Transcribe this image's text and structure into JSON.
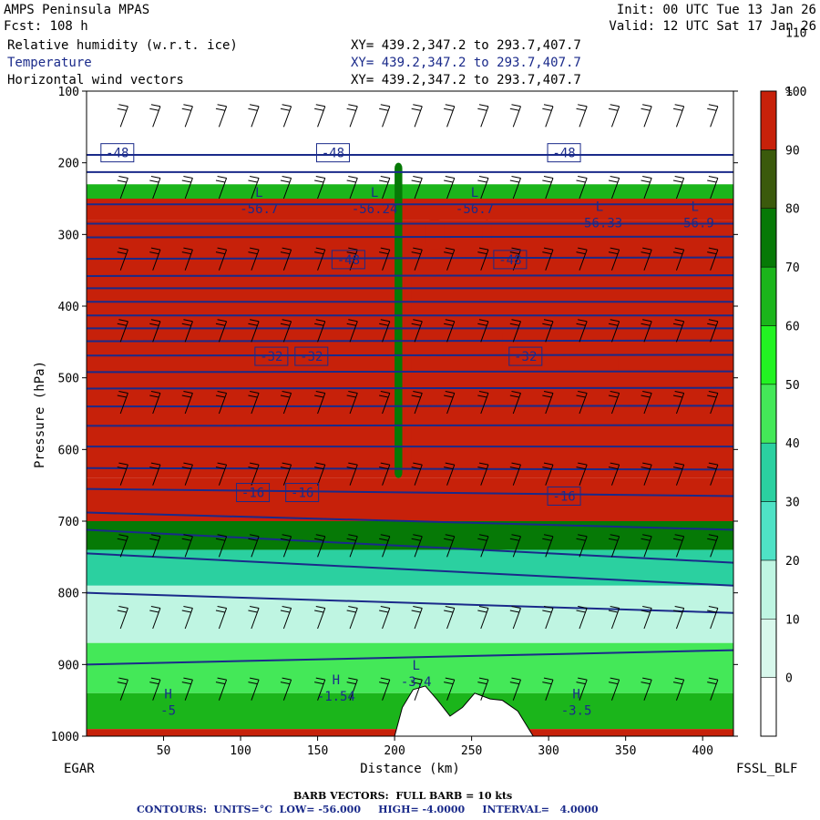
{
  "header": {
    "title": "AMPS Peninsula MPAS",
    "forecast": "Fcst: 108 h",
    "init": "Init: 00 UTC Tue 13 Jan 26",
    "valid": "Valid: 12 UTC Sat 17 Jan 26",
    "fields": [
      {
        "name": "Relative humidity (w.r.t. ice)",
        "coords": "XY= 439.2,347.2 to 293.7,407.7"
      },
      {
        "name": "Temperature",
        "coords": "XY= 439.2,347.2 to 293.7,407.7"
      },
      {
        "name": "Horizontal wind vectors",
        "coords": "XY= 439.2,347.2 to 293.7,407.7"
      }
    ]
  },
  "footer": {
    "left_station": "EGAR",
    "right_station": "FSSL_BLF",
    "barb_note": "BARB VECTORS:  FULL BARB = 10 kts",
    "contour_note": "CONTOURS:  UNITS=°C  LOW= -56.000     HIGH= -4.0000     INTERVAL=   4.0000"
  },
  "colors": {
    "navy": "#1a2a8a",
    "rh_scale": [
      "#ffffff",
      "#d8f8ec",
      "#bff5e2",
      "#4fe2c6",
      "#2bd0a0",
      "#44e858",
      "#22f322",
      "#1bb51b",
      "#067906",
      "#3b5a0c",
      "#c7210a"
    ]
  },
  "chart_data": {
    "type": "cross-section",
    "xlabel": "Distance (km)",
    "ylabel": "Pressure (hPa)",
    "xlim": [
      0,
      420
    ],
    "ylim": [
      1000,
      100
    ],
    "x_ticks": [
      50,
      100,
      150,
      200,
      250,
      300,
      350,
      400
    ],
    "y_ticks": [
      100,
      200,
      300,
      400,
      500,
      600,
      700,
      800,
      900,
      1000
    ],
    "colorbar": {
      "unit": "%",
      "ticks": [
        0,
        10,
        20,
        30,
        40,
        50,
        60,
        70,
        80,
        90,
        100,
        110
      ],
      "bins": [
        -10,
        0,
        10,
        20,
        30,
        40,
        50,
        60,
        70,
        80,
        90,
        100,
        110,
        120
      ]
    },
    "rh_layers": [
      {
        "p_top": 230,
        "p_bottom": 250,
        "rh": 65
      },
      {
        "p_top": 250,
        "p_bottom": 280,
        "rh": 95
      },
      {
        "p_top": 280,
        "p_bottom": 640,
        "rh": 105
      },
      {
        "p_top": 640,
        "p_bottom": 700,
        "rh": 95
      },
      {
        "p_top": 700,
        "p_bottom": 740,
        "rh": 75
      },
      {
        "p_top": 740,
        "p_bottom": 790,
        "rh": 35
      },
      {
        "p_top": 790,
        "p_bottom": 870,
        "rh": 15
      },
      {
        "p_top": 870,
        "p_bottom": 940,
        "rh": 45
      },
      {
        "p_top": 940,
        "p_bottom": 990,
        "rh": 65
      },
      {
        "p_top": 990,
        "p_bottom": 1000,
        "rh": 105
      }
    ],
    "rh_patches": [
      {
        "x": [
          220,
          232
        ],
        "p": [
          280,
          320
        ],
        "rh": 112
      },
      {
        "x": [
          257,
          263
        ],
        "p": [
          280,
          320
        ],
        "rh": 112
      },
      {
        "x": [
          207,
          211
        ],
        "p": [
          350,
          630
        ],
        "rh": 112
      },
      {
        "x": [
          270,
          280
        ],
        "p": [
          430,
          470
        ],
        "rh": 112
      },
      {
        "x": [
          345,
          420
        ],
        "p": [
          430,
          500
        ],
        "rh": 112
      },
      {
        "x": [
          385,
          400
        ],
        "p": [
          285,
          300
        ],
        "rh": 112
      },
      {
        "x": [
          200,
          205
        ],
        "p": [
          200,
          640
        ],
        "rh": 75
      }
    ],
    "temperature_isotherms": [
      {
        "p_left": 189,
        "p_right": 189
      },
      {
        "p_left": 213,
        "p_right": 213
      },
      {
        "p_left": 258,
        "p_right": 258
      },
      {
        "p_left": 285,
        "p_right": 285
      },
      {
        "p_left": 304,
        "p_right": 303
      },
      {
        "p_left": 334,
        "p_right": 332
      },
      {
        "p_left": 358,
        "p_right": 357
      },
      {
        "p_left": 375,
        "p_right": 375
      },
      {
        "p_left": 394,
        "p_right": 394
      },
      {
        "p_left": 413,
        "p_right": 413
      },
      {
        "p_left": 431,
        "p_right": 431
      },
      {
        "p_left": 449,
        "p_right": 448
      },
      {
        "p_left": 469,
        "p_right": 468
      },
      {
        "p_left": 492,
        "p_right": 491
      },
      {
        "p_left": 515,
        "p_right": 514
      },
      {
        "p_left": 540,
        "p_right": 539
      },
      {
        "p_left": 567,
        "p_right": 566
      },
      {
        "p_left": 596,
        "p_right": 596
      },
      {
        "p_left": 626,
        "p_right": 628
      },
      {
        "p_left": 655,
        "p_right": 665
      },
      {
        "p_left": 688,
        "p_right": 712
      },
      {
        "p_left": 712,
        "p_right": 758
      },
      {
        "p_left": 745,
        "p_right": 790
      },
      {
        "p_left": 800,
        "p_right": 828
      },
      {
        "p_left": 900,
        "p_right": 880
      }
    ],
    "contour_labels": [
      {
        "text": "-48",
        "x": 20,
        "p": 186
      },
      {
        "text": "-48",
        "x": 160,
        "p": 186
      },
      {
        "text": "-48",
        "x": 310,
        "p": 186
      },
      {
        "text": "-48",
        "x": 170,
        "p": 335
      },
      {
        "text": "-48",
        "x": 275,
        "p": 335
      },
      {
        "text": "-32",
        "x": 120,
        "p": 470
      },
      {
        "text": "-32",
        "x": 146,
        "p": 470
      },
      {
        "text": "-32",
        "x": 285,
        "p": 470
      },
      {
        "text": "-16",
        "x": 108,
        "p": 660
      },
      {
        "text": "-16",
        "x": 140,
        "p": 660
      },
      {
        "text": "-16",
        "x": 310,
        "p": 665
      }
    ],
    "extrema": [
      {
        "type": "L",
        "value": "-56.7",
        "x": 112,
        "p": 260
      },
      {
        "type": "L",
        "value": "-56.24",
        "x": 187,
        "p": 260
      },
      {
        "type": "L",
        "value": "-56.7",
        "x": 252,
        "p": 260
      },
      {
        "type": "L",
        "value": "-56.33",
        "x": 333,
        "p": 280
      },
      {
        "type": "L",
        "value": "-56.9",
        "x": 395,
        "p": 280
      },
      {
        "type": "H",
        "value": "-5",
        "x": 53,
        "p": 960
      },
      {
        "type": "H",
        "value": "-1.54",
        "x": 162,
        "p": 940
      },
      {
        "type": "L",
        "value": "-3.4",
        "x": 214,
        "p": 920
      },
      {
        "type": "H",
        "value": "-3.5",
        "x": 318,
        "p": 960
      }
    ],
    "terrain": [
      [
        200,
        1000
      ],
      [
        205,
        960
      ],
      [
        212,
        935
      ],
      [
        220,
        930
      ],
      [
        228,
        950
      ],
      [
        236,
        972
      ],
      [
        244,
        960
      ],
      [
        252,
        940
      ],
      [
        262,
        948
      ],
      [
        270,
        950
      ],
      [
        280,
        965
      ],
      [
        290,
        1000
      ]
    ],
    "barb_x": [
      22,
      43,
      64,
      86,
      107,
      128,
      150,
      171,
      192,
      213,
      234,
      256,
      277,
      298,
      320,
      341,
      362,
      383,
      405
    ],
    "barb_p": [
      150,
      250,
      350,
      450,
      550,
      650,
      750,
      850,
      950
    ],
    "wind_speed_kts": 20
  }
}
